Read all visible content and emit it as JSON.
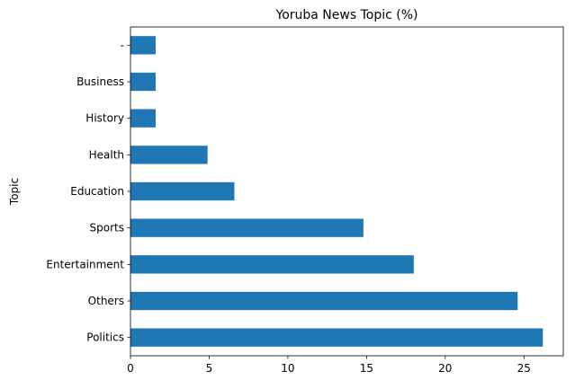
{
  "chart_data": {
    "type": "bar",
    "orientation": "horizontal",
    "title": "Yoruba News Topic (%)",
    "xlabel": "",
    "ylabel": "Topic",
    "categories": [
      "Politics",
      "Others",
      "Entertainment",
      "Sports",
      "Education",
      "Health",
      "History",
      "Business",
      "-"
    ],
    "values": [
      26.2,
      24.6,
      18.0,
      14.8,
      6.6,
      4.9,
      1.6,
      1.6,
      1.6
    ],
    "xlim": [
      0,
      27.5
    ],
    "xticks": [
      0,
      5,
      10,
      15,
      20,
      25
    ],
    "bar_color": "#1f77b4",
    "grid": false,
    "legend": "none"
  }
}
